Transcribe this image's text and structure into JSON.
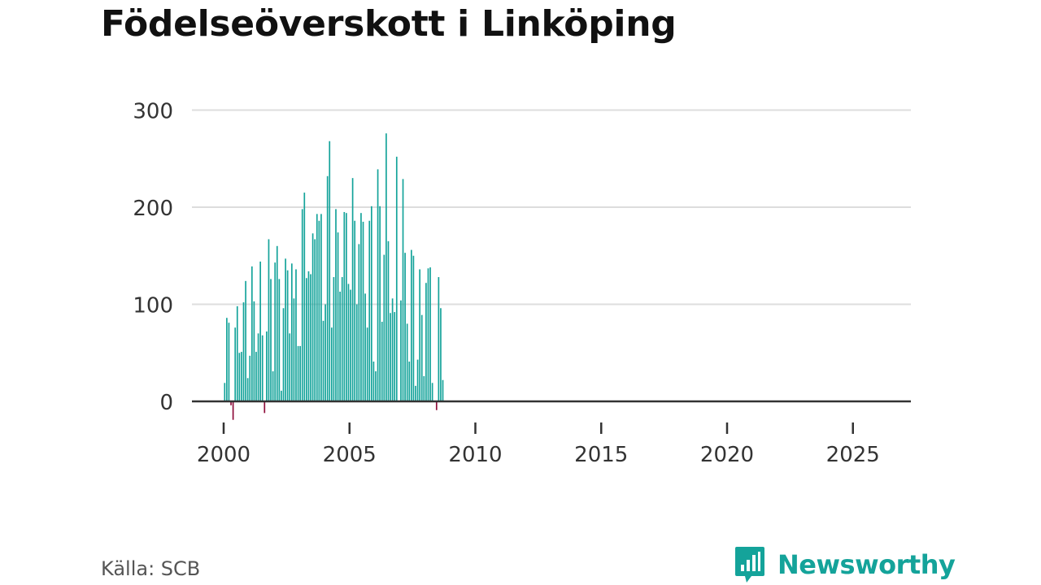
{
  "brand": {
    "name": "Newsworthy",
    "logo_icon": "newsworthy-logo-icon",
    "color": "#14a39a"
  },
  "source": "Källa: SCB",
  "chart_data": {
    "type": "bar",
    "title": "Födelseöverskott i Linköping",
    "xlabel": "",
    "ylabel": "",
    "ylim": [
      -25,
      300
    ],
    "yticks": [
      0,
      100,
      200,
      300
    ],
    "xticks": [
      2000,
      2005,
      2010,
      2015,
      2020,
      2025
    ],
    "frequency": "monthly",
    "start_month": "2000-01",
    "colors": {
      "positive": "#14a39a",
      "negative": "#8e0c3a",
      "grid": "#dddddd",
      "axis": "#333333"
    },
    "values": [
      19,
      86,
      81,
      -4,
      -19,
      76,
      98,
      50,
      51,
      102,
      124,
      24,
      47,
      139,
      103,
      51,
      70,
      144,
      68,
      -12,
      72,
      167,
      126,
      31,
      143,
      160,
      126,
      11,
      96,
      147,
      135,
      70,
      142,
      106,
      136,
      57,
      57,
      198,
      215,
      127,
      134,
      131,
      173,
      167,
      193,
      186,
      193,
      83,
      100,
      232,
      268,
      76,
      128,
      198,
      174,
      113,
      128,
      195,
      194,
      121,
      115,
      230,
      186,
      100,
      162,
      194,
      185,
      111,
      76,
      186,
      201,
      41,
      31,
      239,
      201,
      82,
      151,
      276,
      165,
      91,
      106,
      92,
      252,
      0,
      104,
      229,
      153,
      80,
      41,
      156,
      150,
      16,
      43,
      136,
      89,
      26,
      122,
      137,
      138,
      19,
      0,
      -9,
      128,
      96,
      22
    ]
  }
}
